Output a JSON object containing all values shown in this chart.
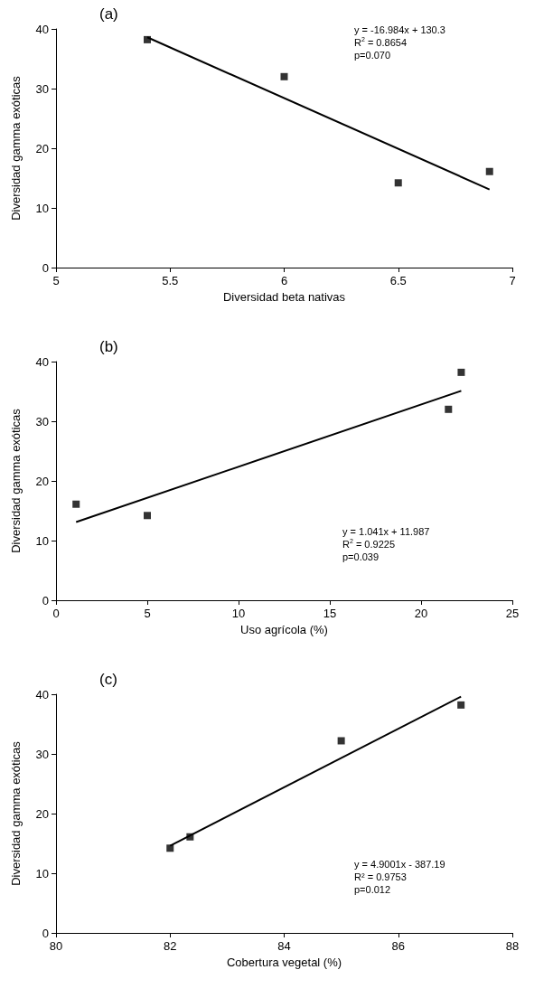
{
  "chart_data": [
    {
      "type": "scatter",
      "title": "(a)",
      "xlabel": "Diversidad beta nativas",
      "ylabel": "Diversidad gamma exóticas",
      "xlim": [
        5,
        7
      ],
      "xticks": [
        5,
        5.5,
        6,
        6.5,
        7
      ],
      "ylim": [
        0,
        40
      ],
      "yticks": [
        0,
        10,
        20,
        30,
        40
      ],
      "grid": false,
      "annotations": [
        "y = -16.984x + 130.3",
        "R$^{2}$ = 0.8654",
        "p=0.070"
      ],
      "series": [
        {
          "color": "#000000",
          "marker": "square",
          "x": [
            5.4,
            6.0,
            6.5,
            6.9
          ],
          "values": [
            38.2,
            32,
            14.2,
            16.1
          ]
        },
        {
          "type": "line",
          "marker": "none",
          "color": "#000000",
          "x": [
            5.4,
            6.9
          ],
          "values": [
            38.6,
            13.1
          ]
        }
      ]
    },
    {
      "type": "scatter",
      "title": "(b)",
      "xlabel": "Uso agrícola (%)",
      "ylabel": "Diversidad gamma exóticas",
      "xlim": [
        0,
        25
      ],
      "xticks": [
        0,
        5,
        10,
        15,
        20,
        25
      ],
      "ylim": [
        0,
        40
      ],
      "yticks": [
        0,
        10,
        20,
        30,
        40
      ],
      "grid": false,
      "annotations": [
        "y = 1.041x + 11.987",
        "R$^{2}$ = 0.9225",
        "p=0.039"
      ],
      "series": [
        {
          "color": "#000000",
          "marker": "square",
          "x": [
            1.1,
            5,
            21.5,
            22.2
          ],
          "values": [
            16.1,
            14.2,
            32,
            38.2
          ]
        },
        {
          "type": "line",
          "marker": "none",
          "color": "#000000",
          "x": [
            1.1,
            22.2
          ],
          "values": [
            13.1,
            35.1
          ]
        }
      ]
    },
    {
      "type": "scatter",
      "title": "(c)",
      "xlabel": "Cobertura vegetal (%)",
      "ylabel": "Diversidad gamma exóticas",
      "xlim": [
        80,
        88
      ],
      "xticks": [
        80,
        82,
        84,
        86,
        88
      ],
      "ylim": [
        0,
        40
      ],
      "yticks": [
        0,
        10,
        20,
        30,
        40
      ],
      "grid": false,
      "annotations": [
        "y = 4.9001x - 387.19",
        "R² = 0.9753",
        "p=0.012"
      ],
      "series": [
        {
          "color": "#000000",
          "marker": "square",
          "x": [
            82,
            82.35,
            85,
            87.1
          ],
          "values": [
            14.2,
            16.1,
            32.2,
            38.2
          ]
        },
        {
          "type": "line",
          "marker": "none",
          "color": "#000000",
          "x": [
            82,
            87.1
          ],
          "values": [
            14.6,
            39.6
          ]
        }
      ]
    }
  ]
}
